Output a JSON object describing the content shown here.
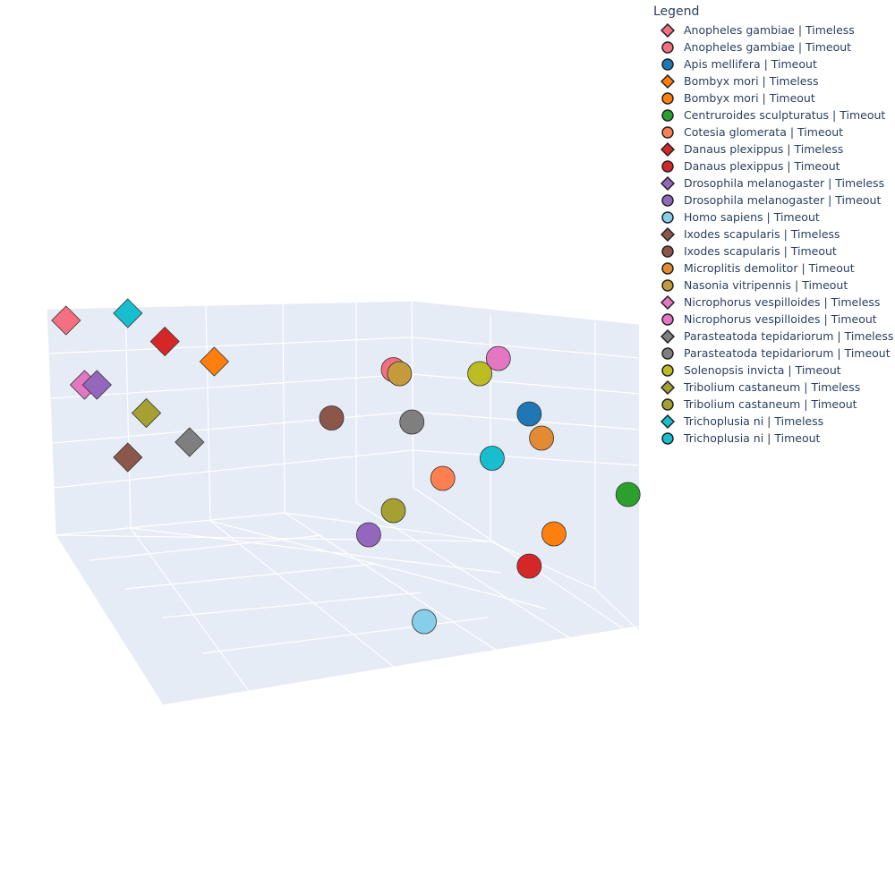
{
  "chart_data": {
    "type": "scatter",
    "title": "",
    "legend": {
      "title": "Legend",
      "placement": "top-right",
      "entries": [
        {
          "label": "Anopheles gambiae | Timeless",
          "color": "#f46f7f",
          "symbol": "diamond"
        },
        {
          "label": "Anopheles gambiae | Timeout",
          "color": "#f46f7f",
          "symbol": "circle"
        },
        {
          "label": "Apis mellifera | Timeout",
          "color": "#1f77b4",
          "symbol": "circle"
        },
        {
          "label": "Bombyx mori | Timeless",
          "color": "#ff7f0e",
          "symbol": "diamond"
        },
        {
          "label": "Bombyx mori | Timeout",
          "color": "#ff7f0e",
          "symbol": "circle"
        },
        {
          "label": "Centruroides sculpturatus | Timeout",
          "color": "#2ca02c",
          "symbol": "circle"
        },
        {
          "label": "Cotesia glomerata | Timeout",
          "color": "#ff7f50",
          "symbol": "circle"
        },
        {
          "label": "Danaus plexippus | Timeless",
          "color": "#d62728",
          "symbol": "diamond"
        },
        {
          "label": "Danaus plexippus | Timeout",
          "color": "#d62728",
          "symbol": "circle"
        },
        {
          "label": "Drosophila melanogaster | Timeless",
          "color": "#9467bd",
          "symbol": "diamond"
        },
        {
          "label": "Drosophila melanogaster | Timeout",
          "color": "#9467bd",
          "symbol": "circle"
        },
        {
          "label": "Homo sapiens | Timeout",
          "color": "#87ceeb",
          "symbol": "circle"
        },
        {
          "label": "Ixodes scapularis | Timeless",
          "color": "#8c564b",
          "symbol": "diamond"
        },
        {
          "label": "Ixodes scapularis | Timeout",
          "color": "#8c564b",
          "symbol": "circle"
        },
        {
          "label": "Microplitis demolitor | Timeout",
          "color": "#e38a33",
          "symbol": "circle"
        },
        {
          "label": "Nasonia vitripennis | Timeout",
          "color": "#c49a3c",
          "symbol": "circle"
        },
        {
          "label": "Nicrophorus vespilloides | Timeless",
          "color": "#e377c2",
          "symbol": "diamond"
        },
        {
          "label": "Nicrophorus vespilloides | Timeout",
          "color": "#e377c2",
          "symbol": "circle"
        },
        {
          "label": "Parasteatoda tepidariorum | Timeless",
          "color": "#7f7f7f",
          "symbol": "diamond"
        },
        {
          "label": "Parasteatoda tepidariorum | Timeout",
          "color": "#7f7f7f",
          "symbol": "circle"
        },
        {
          "label": "Solenopsis invicta | Timeout",
          "color": "#bcbd22",
          "symbol": "circle"
        },
        {
          "label": "Tribolium castaneum | Timeless",
          "color": "#a6a032",
          "symbol": "diamond"
        },
        {
          "label": "Tribolium castaneum | Timeout",
          "color": "#a6a032",
          "symbol": "circle"
        },
        {
          "label": "Trichoplusia ni | Timeless",
          "color": "#17becf",
          "symbol": "diamond"
        },
        {
          "label": "Trichoplusia ni | Timeout",
          "color": "#17becf",
          "symbol": "circle"
        }
      ]
    },
    "axes": {
      "x_title": "",
      "y_title": "",
      "z_title": "",
      "tick_labels": false,
      "grid": true
    },
    "scene_background": "#e5ecf6",
    "grid_color": "#ffffff",
    "points": [
      {
        "name": "Anopheles gambiae | Timeless",
        "x": 0.02,
        "y": 0.96,
        "z": 0.91
      },
      {
        "name": "Trichoplusia ni | Timeless",
        "x": 0.12,
        "y": 0.98,
        "z": 0.92
      },
      {
        "name": "Danaus plexippus | Timeless",
        "x": 0.18,
        "y": 0.91,
        "z": 0.85
      },
      {
        "name": "Bombyx mori | Timeless",
        "x": 0.26,
        "y": 0.86,
        "z": 0.8
      },
      {
        "name": "Nicrophorus vespilloides | Timeless",
        "x": 0.05,
        "y": 0.8,
        "z": 0.75
      },
      {
        "name": "Drosophila melanogaster | Timeless",
        "x": 0.07,
        "y": 0.8,
        "z": 0.75
      },
      {
        "name": "Tribolium castaneum | Timeless",
        "x": 0.15,
        "y": 0.73,
        "z": 0.68
      },
      {
        "name": "Parasteatoda tepidariorum | Timeless",
        "x": 0.22,
        "y": 0.66,
        "z": 0.6
      },
      {
        "name": "Ixodes scapularis | Timeless",
        "x": 0.12,
        "y": 0.62,
        "z": 0.57
      },
      {
        "name": "Ixodes scapularis | Timeout",
        "x": 0.45,
        "y": 0.72,
        "z": 0.66
      },
      {
        "name": "Anopheles gambiae | Timeout",
        "x": 0.55,
        "y": 0.84,
        "z": 0.78
      },
      {
        "name": "Nasonia vitripennis | Timeout",
        "x": 0.56,
        "y": 0.83,
        "z": 0.77
      },
      {
        "name": "Nicrophorus vespilloides | Timeout",
        "x": 0.72,
        "y": 0.87,
        "z": 0.8
      },
      {
        "name": "Solenopsis invicta | Timeout",
        "x": 0.69,
        "y": 0.83,
        "z": 0.77
      },
      {
        "name": "Apis mellifera | Timeout",
        "x": 0.77,
        "y": 0.73,
        "z": 0.67
      },
      {
        "name": "Parasteatoda tepidariorum | Timeout",
        "x": 0.58,
        "y": 0.71,
        "z": 0.65
      },
      {
        "name": "Microplitis demolitor | Timeout",
        "x": 0.79,
        "y": 0.67,
        "z": 0.61
      },
      {
        "name": "Trichoplusia ni | Timeout",
        "x": 0.71,
        "y": 0.62,
        "z": 0.56
      },
      {
        "name": "Cotesia glomerata | Timeout",
        "x": 0.63,
        "y": 0.57,
        "z": 0.51
      },
      {
        "name": "Centruroides sculpturatus | Timeout",
        "x": 0.93,
        "y": 0.53,
        "z": 0.47
      },
      {
        "name": "Tribolium castaneum | Timeout",
        "x": 0.55,
        "y": 0.49,
        "z": 0.43
      },
      {
        "name": "Bombyx mori | Timeout",
        "x": 0.81,
        "y": 0.43,
        "z": 0.38
      },
      {
        "name": "Drosophila melanogaster | Timeout",
        "x": 0.51,
        "y": 0.43,
        "z": 0.37
      },
      {
        "name": "Danaus plexippus | Timeout",
        "x": 0.77,
        "y": 0.35,
        "z": 0.3
      },
      {
        "name": "Homo sapiens | Timeout",
        "x": 0.6,
        "y": 0.21,
        "z": 0.17
      }
    ]
  }
}
